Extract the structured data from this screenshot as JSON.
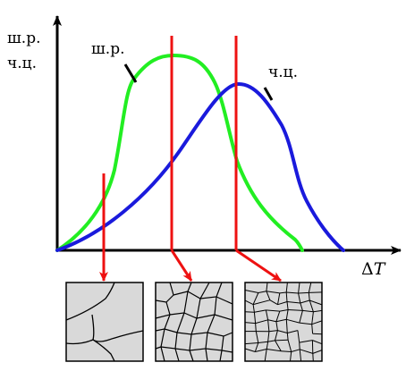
{
  "y_axis_label": {
    "line1": "ш.р.",
    "line2": "ч.ц."
  },
  "x_axis_label": {
    "delta": "Δ",
    "var": "T"
  },
  "series": [
    {
      "label": "ш.р.",
      "color": "#22ee22"
    },
    {
      "label": "ч.ц.",
      "color": "#1a1adc"
    }
  ],
  "marker_color": "#ee1111",
  "panel_fill": "#d9d9d9",
  "axis_color": "#000000"
}
